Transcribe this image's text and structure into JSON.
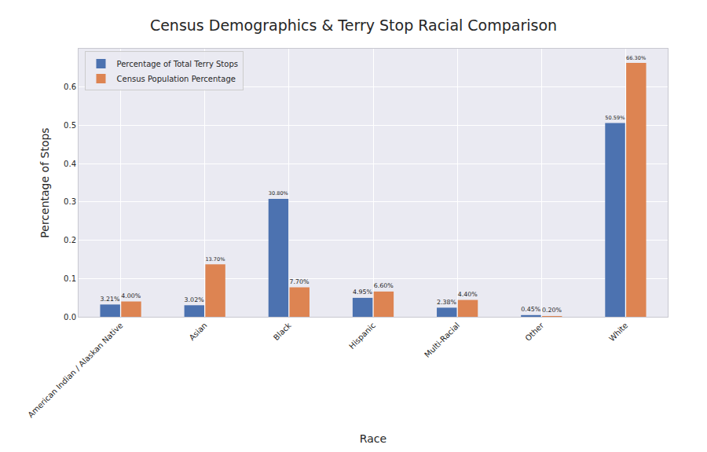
{
  "chart_data": {
    "type": "bar",
    "title": "Census Demographics & Terry Stop Racial Comparison",
    "x_label": "Race",
    "y_label": "Percentage of Stops",
    "categories": [
      "American Indian / Alaskan Native",
      "Asian",
      "Black",
      "Hispanic",
      "Multi-Racial",
      "Other",
      "White"
    ],
    "series": [
      {
        "name": "Percentage of Total Terry Stops",
        "color": "#4c72b0",
        "values": [
          0.0321,
          0.0302,
          0.308,
          0.0495,
          0.0238,
          0.0045,
          0.5059
        ],
        "value_labels": [
          "3.21%",
          "3.02%",
          "30.80%",
          "4.95%",
          "2.38%",
          "0.45%",
          "50.59%"
        ]
      },
      {
        "name": "Census Population Percentage",
        "color": "#dd8452",
        "values": [
          0.04,
          0.137,
          0.077,
          0.066,
          0.044,
          0.002,
          0.663
        ],
        "value_labels": [
          "4.00%",
          "13.70%",
          "7.70%",
          "6.60%",
          "4.40%",
          "0.20%",
          "66.30%"
        ]
      }
    ],
    "ylim": [
      0,
      0.7
    ],
    "yticks": [
      {
        "value": 0,
        "label": "0.0"
      },
      0.1,
      0.2,
      0.3,
      0.4,
      0.5,
      0.6
    ],
    "grid": true,
    "legend": "upper left",
    "data_labels": true
  }
}
